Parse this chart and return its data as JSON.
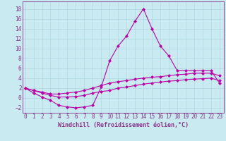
{
  "xlabel": "Windchill (Refroidissement éolien,°C)",
  "background_color": "#c8eaf0",
  "grid_color": "#b0d8e0",
  "line_color": "#bb00aa",
  "x": [
    0,
    1,
    2,
    3,
    4,
    5,
    6,
    7,
    8,
    9,
    10,
    11,
    12,
    13,
    14,
    15,
    16,
    17,
    18,
    19,
    20,
    21,
    22,
    23
  ],
  "line1": [
    2.0,
    1.0,
    0.2,
    -0.5,
    -1.5,
    -1.8,
    -2.0,
    -1.8,
    -1.5,
    2.2,
    7.5,
    10.5,
    12.5,
    15.5,
    18.0,
    14.0,
    10.5,
    8.5,
    5.5,
    5.5,
    5.5,
    5.5,
    5.5,
    3.0
  ],
  "line2": [
    2.0,
    1.5,
    1.2,
    0.8,
    0.8,
    1.0,
    1.2,
    1.5,
    2.0,
    2.5,
    3.0,
    3.3,
    3.5,
    3.8,
    4.0,
    4.2,
    4.3,
    4.5,
    4.7,
    4.8,
    5.0,
    5.0,
    5.0,
    4.5
  ],
  "line3": [
    2.0,
    1.5,
    1.0,
    0.5,
    0.2,
    0.2,
    0.3,
    0.5,
    1.0,
    1.3,
    1.5,
    2.0,
    2.2,
    2.5,
    2.8,
    3.0,
    3.2,
    3.4,
    3.5,
    3.7,
    3.8,
    3.9,
    4.0,
    3.5
  ],
  "ylim": [
    -3.0,
    19.5
  ],
  "xlim": [
    -0.3,
    23.5
  ],
  "yticks": [
    -2,
    0,
    2,
    4,
    6,
    8,
    10,
    12,
    14,
    16,
    18
  ],
  "xticks": [
    0,
    1,
    2,
    3,
    4,
    5,
    6,
    7,
    8,
    9,
    10,
    11,
    12,
    13,
    14,
    15,
    16,
    17,
    18,
    19,
    20,
    21,
    22,
    23
  ],
  "marker": "D",
  "markersize": 2.0,
  "linewidth": 0.8,
  "xlabel_fontsize": 6.0,
  "tick_fontsize": 5.5,
  "axes_color": "#883388",
  "spine_color": "#883388",
  "spine_linewidth": 0.6
}
